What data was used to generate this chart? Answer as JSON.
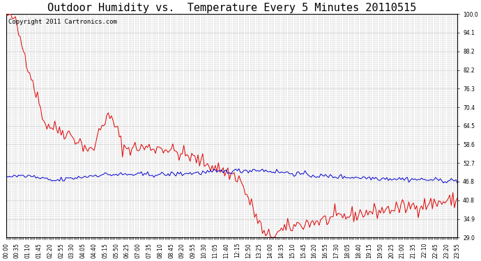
{
  "title": "Outdoor Humidity vs.  Temperature Every 5 Minutes 20110515",
  "copyright_text": "Copyright 2011 Cartronics.com",
  "background_color": "#ffffff",
  "plot_bg_color": "#ffffff",
  "grid_color": "#bbbbbb",
  "red_color": "#dd0000",
  "blue_color": "#0000cc",
  "y_ticks": [
    29.0,
    34.9,
    40.8,
    46.8,
    52.7,
    58.6,
    64.5,
    70.4,
    76.3,
    82.2,
    88.2,
    94.1,
    100.0
  ],
  "ylim": [
    29.0,
    100.0
  ],
  "title_fontsize": 11,
  "copyright_fontsize": 6.5,
  "tick_fontsize": 5.5,
  "label_every_n": 7,
  "n_points": 288
}
